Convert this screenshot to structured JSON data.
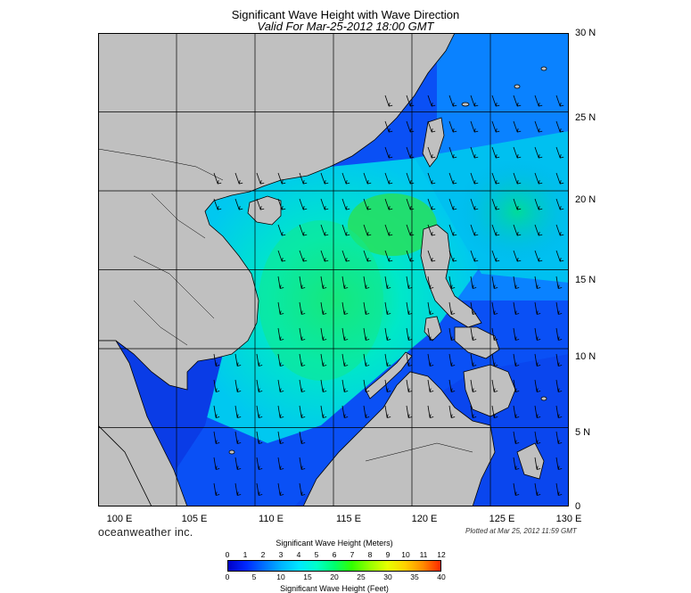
{
  "title": "Significant Wave Height with Wave Direction",
  "subtitle": "Valid For Mar-25-2012 18:00 GMT",
  "map": {
    "lon_range": [
      100,
      130
    ],
    "lat_range": [
      0,
      30
    ],
    "lat_labels": [
      "30 N",
      "25 N",
      "20 N",
      "15 N",
      "10 N",
      "5 N",
      "0"
    ],
    "lon_labels": [
      "100 E",
      "105 E",
      "110 E",
      "115 E",
      "120 E",
      "125 E",
      "130 E"
    ],
    "grid_step_deg": 5,
    "land_color": "#c0c0c0",
    "wave_direction": "northeast monsoon swell toward southwest"
  },
  "brand": "oceanweather inc.",
  "plotted": "Plotted at Mar 25, 2012 11:59 GMT",
  "colorbar": {
    "title_top": "Significant Wave Height (Meters)",
    "title_bottom": "Significant Wave Height (Feet)",
    "meters_ticks": [
      "0",
      "1",
      "2",
      "3",
      "4",
      "5",
      "6",
      "7",
      "8",
      "9",
      "10",
      "11",
      "12"
    ],
    "feet_ticks": [
      "0",
      "5",
      "10",
      "15",
      "20",
      "25",
      "30",
      "35",
      "40"
    ],
    "meters_max": 12,
    "feet_max": 40,
    "colors": [
      "#0000c8",
      "#0028ff",
      "#0070ff",
      "#00b4ff",
      "#00e6ff",
      "#00ffc8",
      "#00ff6e",
      "#32ff00",
      "#96ff00",
      "#e6ff00",
      "#ffd200",
      "#ff8c00",
      "#ff2800"
    ]
  }
}
